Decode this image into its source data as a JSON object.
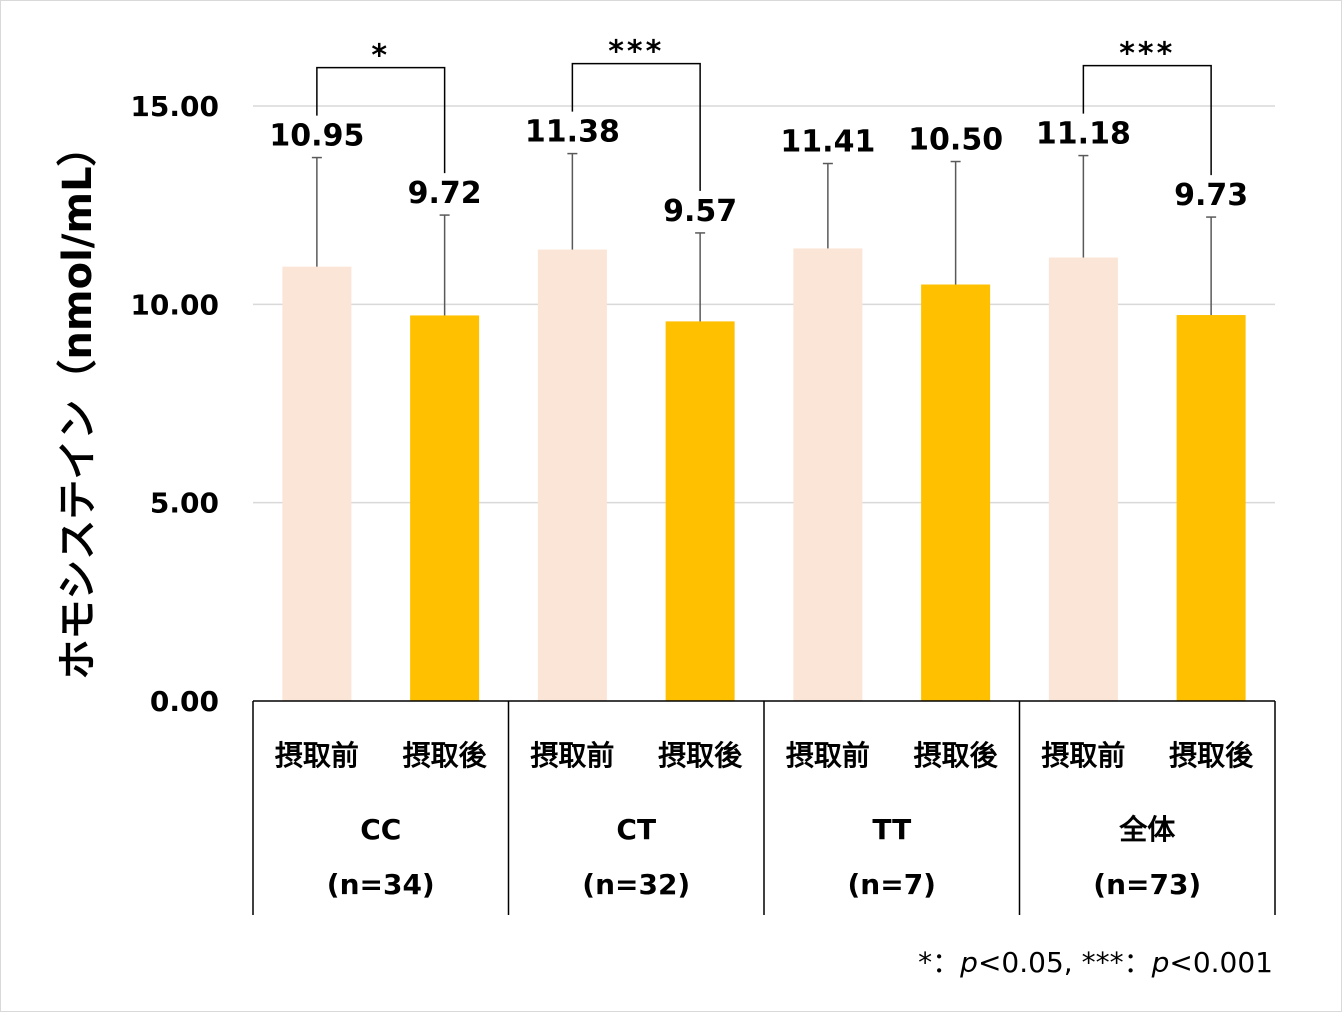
{
  "chart_data": {
    "type": "bar",
    "ylabel": "ホモシステイン（nmol/mL）",
    "ylim": [
      0,
      15
    ],
    "yticks": [
      "0.00",
      "5.00",
      "10.00",
      "15.00"
    ],
    "ytick_values": [
      0,
      5,
      10,
      15
    ],
    "categories": [
      "摂取前",
      "摂取後",
      "摂取前",
      "摂取後",
      "摂取前",
      "摂取後",
      "摂取前",
      "摂取後"
    ],
    "groups": [
      {
        "name": "CC",
        "n": "(n=34)"
      },
      {
        "name": "CT",
        "n": "(n=32)"
      },
      {
        "name": "TT",
        "n": "(n=7)"
      },
      {
        "name": "全体",
        "n": "(n=73)"
      }
    ],
    "values": [
      10.95,
      9.72,
      11.38,
      9.57,
      11.41,
      10.5,
      11.18,
      9.73
    ],
    "value_labels": [
      "10.95",
      "9.72",
      "11.38",
      "9.57",
      "11.41",
      "10.50",
      "11.18",
      "9.73"
    ],
    "error_upper": [
      13.7,
      12.25,
      13.8,
      11.8,
      13.55,
      13.6,
      13.75,
      12.2
    ],
    "bar_colors": [
      "#fbe5d6",
      "#ffc000",
      "#fbe5d6",
      "#ffc000",
      "#fbe5d6",
      "#ffc000",
      "#fbe5d6",
      "#ffc000"
    ],
    "significance": [
      {
        "group": 0,
        "label": "*"
      },
      {
        "group": 1,
        "label": "***"
      },
      {
        "group": 3,
        "label": "***"
      }
    ],
    "grid": true
  },
  "footnote": {
    "star1": "*",
    "sep1": "：",
    "p1": "p",
    "lt1": "<0.05,",
    "star3": "***",
    "sep2": "：",
    "p2": "p",
    "lt2": "<0.001"
  }
}
